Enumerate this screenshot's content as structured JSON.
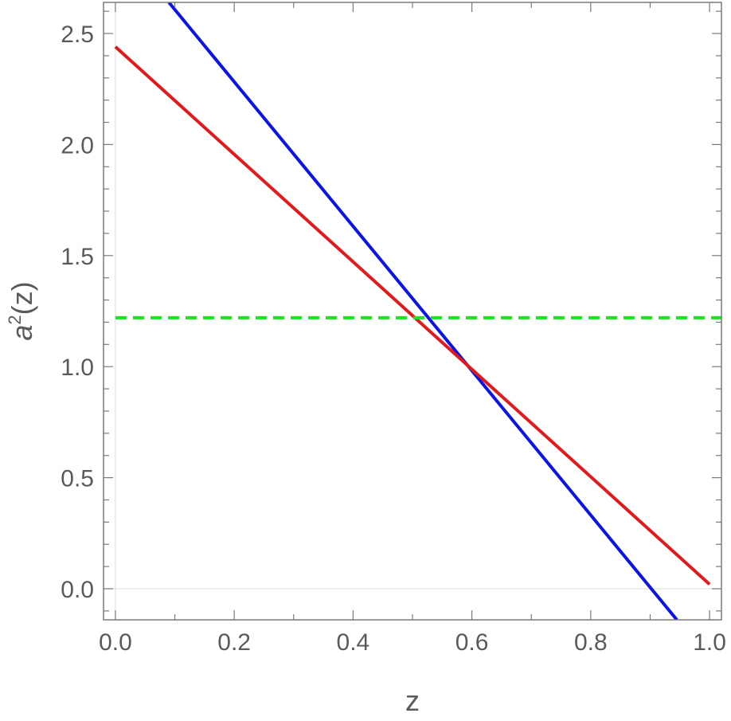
{
  "chart_data": {
    "type": "line",
    "xlabel": "z",
    "ylabel": {
      "base": "a",
      "sup": "2",
      "rest": "(z)"
    },
    "xlim": [
      -0.02,
      1.02
    ],
    "ylim": [
      -0.14,
      2.64
    ],
    "x_ticks": [
      {
        "value": 0.0,
        "label": "0.0"
      },
      {
        "value": 0.2,
        "label": "0.2"
      },
      {
        "value": 0.4,
        "label": "0.4"
      },
      {
        "value": 0.6,
        "label": "0.6"
      },
      {
        "value": 0.8,
        "label": "0.8"
      },
      {
        "value": 1.0,
        "label": "1.0"
      }
    ],
    "y_ticks": [
      {
        "value": 0.0,
        "label": "0.0"
      },
      {
        "value": 0.5,
        "label": "0.5"
      },
      {
        "value": 1.0,
        "label": "1.0"
      },
      {
        "value": 1.5,
        "label": "1.5"
      },
      {
        "value": 2.0,
        "label": "2.0"
      },
      {
        "value": 2.5,
        "label": "2.5"
      }
    ],
    "x_minor_step": 0.1,
    "y_minor_step": 0.1,
    "grid": false,
    "zero_lines": true,
    "series": [
      {
        "key": "blue",
        "color": "#0a14e6",
        "dashed": false,
        "points": [
          [
            0.09,
            2.64
          ],
          [
            0.945,
            -0.14
          ]
        ]
      },
      {
        "key": "red",
        "color": "#e31a1c",
        "dashed": false,
        "points": [
          [
            0.0,
            2.44
          ],
          [
            1.0,
            0.02
          ]
        ]
      },
      {
        "key": "green",
        "color": "#19e619",
        "dashed": true,
        "points": [
          [
            0.0,
            1.22
          ],
          [
            1.02,
            1.22
          ]
        ]
      }
    ]
  }
}
